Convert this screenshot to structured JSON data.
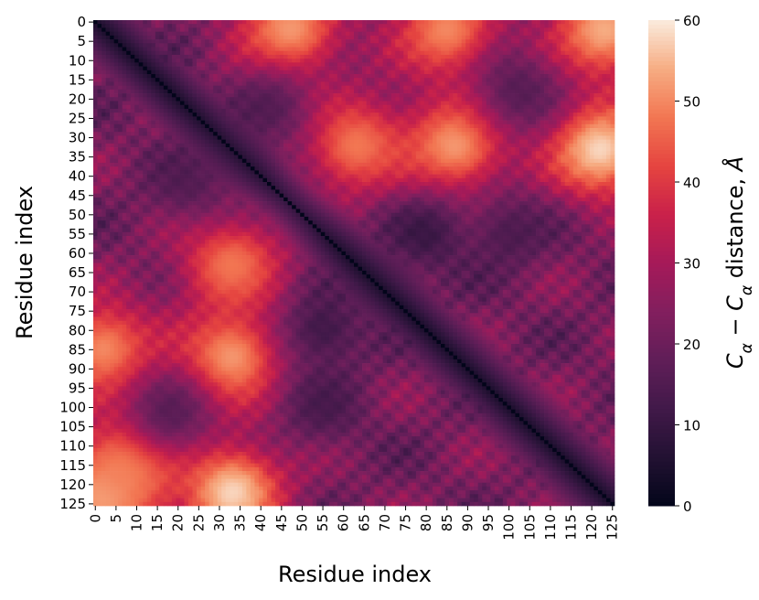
{
  "chart_data": {
    "type": "heatmap",
    "title": "",
    "xlabel": "Residue index",
    "ylabel": "Residue index",
    "n": 126,
    "x_ticks": [
      "0",
      "5",
      "10",
      "15",
      "20",
      "25",
      "30",
      "35",
      "40",
      "45",
      "50",
      "55",
      "60",
      "65",
      "70",
      "75",
      "80",
      "85",
      "90",
      "95",
      "100",
      "105",
      "110",
      "115",
      "120",
      "125"
    ],
    "y_ticks": [
      "0",
      "5",
      "10",
      "15",
      "20",
      "25",
      "30",
      "35",
      "40",
      "45",
      "50",
      "55",
      "60",
      "65",
      "70",
      "75",
      "80",
      "85",
      "90",
      "95",
      "100",
      "105",
      "110",
      "115",
      "120",
      "125"
    ],
    "colorbar": {
      "label_parts": [
        "C",
        "α",
        " − ",
        "C",
        "α",
        " distance, ",
        "Å"
      ],
      "range": [
        0,
        60
      ],
      "ticks": [
        "0",
        "10",
        "20",
        "30",
        "40",
        "50",
        "60"
      ],
      "colormap": "rocket"
    },
    "diagonal_value": 0,
    "hotspots": [
      {
        "i": 32,
        "j": 63,
        "value": 48
      },
      {
        "i": 32,
        "j": 87,
        "value": 52
      },
      {
        "i": 33,
        "j": 122,
        "value": 58
      },
      {
        "i": 2,
        "j": 47,
        "value": 52
      },
      {
        "i": 2,
        "j": 85,
        "value": 50
      },
      {
        "i": 2,
        "j": 123,
        "value": 54
      },
      {
        "i": 122,
        "j": 33,
        "value": 58
      },
      {
        "i": 87,
        "j": 33,
        "value": 52
      },
      {
        "i": 63,
        "j": 33,
        "value": 48
      },
      {
        "i": 85,
        "j": 2,
        "value": 50
      },
      {
        "i": 123,
        "j": 2,
        "value": 54
      },
      {
        "i": 115,
        "j": 8,
        "value": 50
      }
    ],
    "cool_zones": [
      {
        "i": 55,
        "j": 80,
        "value": 8
      },
      {
        "i": 80,
        "j": 55,
        "value": 8
      },
      {
        "i": 22,
        "j": 42,
        "value": 14
      },
      {
        "i": 42,
        "j": 22,
        "value": 14
      },
      {
        "i": 100,
        "j": 55,
        "value": 12
      },
      {
        "i": 55,
        "j": 100,
        "value": 12
      },
      {
        "i": 18,
        "j": 102,
        "value": 14
      },
      {
        "i": 102,
        "j": 18,
        "value": 14
      }
    ]
  }
}
